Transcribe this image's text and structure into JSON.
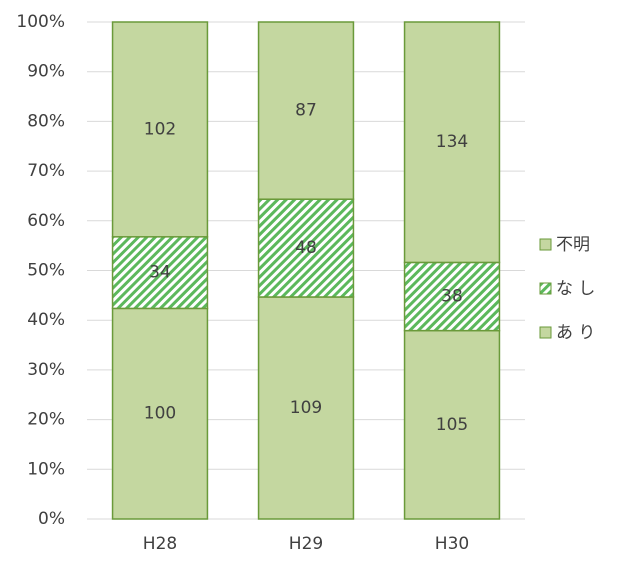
{
  "chart_data": {
    "type": "bar",
    "stacked": "percent",
    "categories": [
      "H28",
      "H29",
      "H30"
    ],
    "series": [
      {
        "name": "あ り",
        "color": "#c4d7a0",
        "values": [
          100,
          109,
          105
        ]
      },
      {
        "name": "な し",
        "color": "#5cb85c",
        "hatch": true,
        "values": [
          34,
          48,
          38
        ]
      },
      {
        "name": "不明",
        "color": "#c4d7a0",
        "values": [
          102,
          87,
          134
        ]
      }
    ],
    "ylim": [
      0,
      100
    ],
    "yticks": [
      {
        "value": 0,
        "label": "0%"
      },
      {
        "value": 10,
        "label": "10%"
      },
      {
        "value": 20,
        "label": "20%"
      },
      {
        "value": 30,
        "label": "30%"
      },
      {
        "value": 40,
        "label": "40%"
      },
      {
        "value": 50,
        "label": "50%"
      },
      {
        "value": 60,
        "label": "60%"
      },
      {
        "value": 70,
        "label": "70%"
      },
      {
        "value": 80,
        "label": "80%"
      },
      {
        "value": 90,
        "label": "90%"
      },
      {
        "value": 100,
        "label": "100%"
      }
    ],
    "grid": true,
    "legend": "right",
    "border_color": "#6a9a3a"
  }
}
